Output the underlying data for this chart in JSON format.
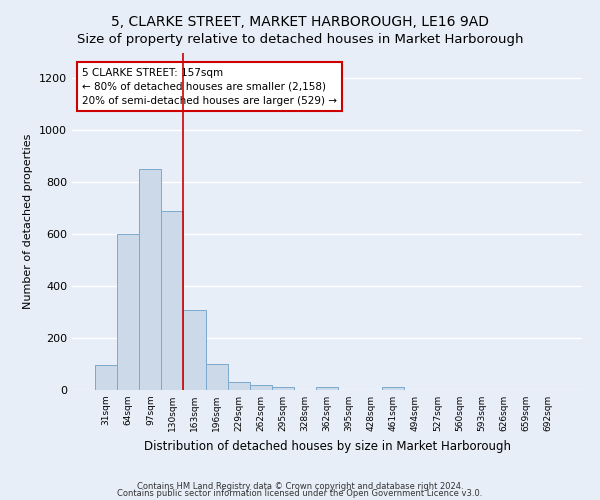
{
  "title": "5, CLARKE STREET, MARKET HARBOROUGH, LE16 9AD",
  "subtitle": "Size of property relative to detached houses in Market Harborough",
  "xlabel": "Distribution of detached houses by size in Market Harborough",
  "ylabel": "Number of detached properties",
  "footnote1": "Contains HM Land Registry data © Crown copyright and database right 2024.",
  "footnote2": "Contains public sector information licensed under the Open Government Licence v3.0.",
  "bin_labels": [
    "31sqm",
    "64sqm",
    "97sqm",
    "130sqm",
    "163sqm",
    "196sqm",
    "229sqm",
    "262sqm",
    "295sqm",
    "328sqm",
    "362sqm",
    "395sqm",
    "428sqm",
    "461sqm",
    "494sqm",
    "527sqm",
    "560sqm",
    "593sqm",
    "626sqm",
    "659sqm",
    "692sqm"
  ],
  "bar_heights": [
    97,
    601,
    851,
    688,
    310,
    100,
    30,
    20,
    13,
    0,
    10,
    0,
    0,
    13,
    0,
    0,
    0,
    0,
    0,
    0,
    0
  ],
  "bar_color": "#ccd9e8",
  "bar_edge_color": "#7aaace",
  "bar_edge_width": 0.7,
  "red_line_x": 3.5,
  "annotation_text": "5 CLARKE STREET: 157sqm\n← 80% of detached houses are smaller (2,158)\n20% of semi-detached houses are larger (529) →",
  "annotation_box_color": "#ffffff",
  "annotation_box_edge": "#cc0000",
  "red_line_color": "#cc0000",
  "ylim": [
    0,
    1300
  ],
  "yticks": [
    0,
    200,
    400,
    600,
    800,
    1000,
    1200
  ],
  "bg_color": "#e8eef8",
  "grid_color": "#ffffff",
  "title_fontsize": 10,
  "subtitle_fontsize": 9.5,
  "xlabel_fontsize": 8.5,
  "ylabel_fontsize": 8,
  "annotation_fontsize": 7.5,
  "footnote_fontsize": 6
}
